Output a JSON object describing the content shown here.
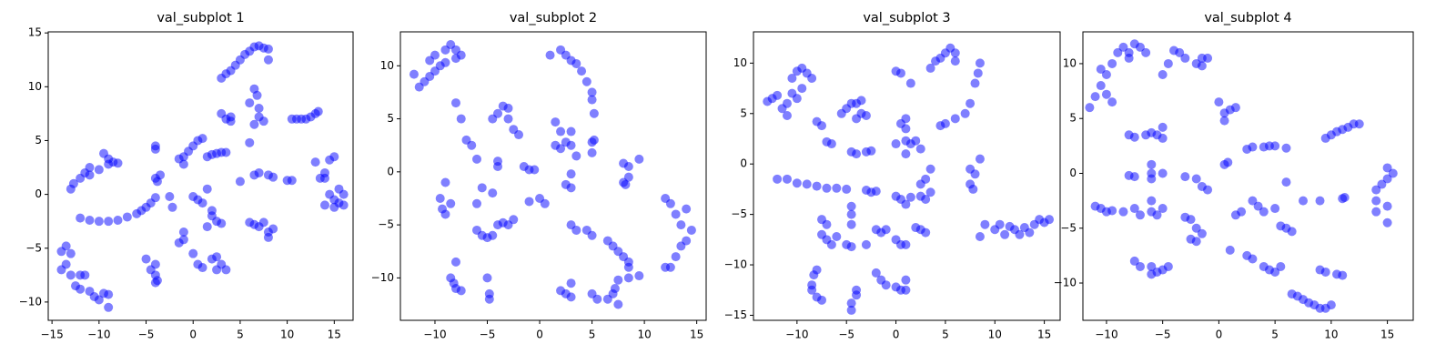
{
  "chart_data": [
    {
      "type": "scatter",
      "title": "val_subplot 1",
      "color": "blue",
      "alpha": 0.5,
      "xlim": [
        -15.4,
        17.0
      ],
      "ylim": [
        -11.7,
        15.1
      ],
      "xticks": [
        {
          "value": -15,
          "label": "−15"
        },
        {
          "value": -10,
          "label": "−10"
        },
        {
          "value": -5,
          "label": "−5"
        },
        0,
        5,
        10,
        15
      ],
      "yticks": [
        {
          "value": -10,
          "label": "−10"
        },
        {
          "value": -5,
          "label": "−5"
        },
        0,
        5,
        10,
        15
      ],
      "x": [
        3,
        3.5,
        4,
        4.5,
        5,
        5.5,
        6,
        6.5,
        7,
        7.5,
        8,
        8,
        6.5,
        6.8,
        6,
        7,
        7,
        7.5,
        6.5,
        6,
        3,
        3.5,
        4,
        4,
        10.5,
        11,
        11.5,
        12,
        12.5,
        13,
        13.3,
        0,
        0.5,
        1,
        -0.5,
        -1,
        -1.5,
        -1,
        1.5,
        2,
        2.5,
        3,
        3.5,
        -4,
        -4,
        -3.5,
        -4,
        -3.8,
        -13,
        -12.7,
        -12,
        -11.5,
        -11,
        -10,
        -9.5,
        -9,
        -9,
        -8.5,
        -8,
        -11,
        5,
        6.5,
        7,
        8,
        8.5,
        10.5,
        10,
        13,
        13.5,
        14,
        14.5,
        15,
        14,
        14.5,
        15,
        15,
        15.5,
        16,
        15.5,
        14,
        16,
        -12,
        -11,
        -10,
        -9,
        -8,
        -7,
        -6,
        -5.5,
        -5,
        -4.5,
        -4,
        -2.5,
        -2.2,
        0,
        0.5,
        1,
        1.5,
        2,
        2.5,
        3,
        1.5,
        2,
        -1,
        -1,
        -1.5,
        0,
        0.5,
        1,
        2,
        2.5,
        3,
        3.5,
        2.5,
        6,
        6.5,
        7,
        7.5,
        8,
        8,
        8.5,
        -14,
        -13.5,
        -13,
        -13.5,
        -14,
        -13,
        -12,
        -11.5,
        -12.5,
        -12,
        -11,
        -10.5,
        -10,
        -9.5,
        -9,
        -9,
        -5,
        -4.5,
        -4,
        -4,
        -4,
        -3.8
      ],
      "y": [
        10.8,
        11.2,
        11.5,
        12,
        12.5,
        13,
        13.3,
        13.7,
        13.8,
        13.6,
        13.5,
        12.5,
        9.8,
        9.2,
        8.5,
        8,
        7.2,
        6.8,
        6.5,
        4.8,
        7.5,
        7,
        6.8,
        7.2,
        7,
        7,
        7,
        7,
        7.2,
        7.5,
        7.7,
        4.5,
        5,
        5.2,
        4,
        3.5,
        3.3,
        2.8,
        3.5,
        3.7,
        3.8,
        3.9,
        3.9,
        4.5,
        4.2,
        1.8,
        1.5,
        1.2,
        0.5,
        1,
        1.5,
        2,
        2.5,
        2.3,
        3.8,
        3.3,
        2.8,
        3,
        2.9,
        1.8,
        1.2,
        1.8,
        2,
        1.8,
        1.6,
        1.3,
        1.3,
        3,
        1.5,
        2,
        3.2,
        3.5,
        1.5,
        0,
        -0.5,
        -1.2,
        0.5,
        0,
        -0.8,
        -1,
        -1,
        -2.2,
        -2.4,
        -2.5,
        -2.5,
        -2.4,
        -2.1,
        -1.8,
        -1.5,
        -1.2,
        -0.8,
        -0.3,
        -0.2,
        -1.2,
        -0.2,
        -0.5,
        -0.8,
        0.5,
        -1.5,
        -2.5,
        -2.7,
        -3,
        -2,
        -3.5,
        -4.2,
        -4.5,
        -5.5,
        -6.5,
        -6.8,
        -6,
        -7,
        -6.5,
        -7,
        -5.8,
        -2.6,
        -2.8,
        -3,
        -2.6,
        -3.5,
        -4,
        -3.2,
        -5.3,
        -4.8,
        -5.5,
        -6.5,
        -7,
        -7.5,
        -7.5,
        -7.5,
        -8.5,
        -8.8,
        -9,
        -9.5,
        -9.8,
        -9.2,
        -10.5,
        -9.3,
        -6,
        -7,
        -6.5,
        -7.5,
        -8.2,
        -8
      ]
    },
    {
      "type": "scatter",
      "title": "val_subplot 2",
      "color": "blue",
      "alpha": 0.5,
      "xlim": [
        -13.3,
        15.9
      ],
      "ylim": [
        -14.0,
        13.2
      ],
      "xticks": [
        {
          "value": -10,
          "label": "−10"
        },
        {
          "value": -5,
          "label": "−5"
        },
        0,
        5,
        10,
        15
      ],
      "yticks": [
        {
          "value": -10,
          "label": "−10"
        },
        {
          "value": -5,
          "label": "−5"
        },
        0,
        5,
        10
      ],
      "x": [
        -12,
        -11.5,
        -11,
        -10.5,
        -10,
        -10.5,
        -10,
        -9,
        -8.5,
        -8,
        -7.5,
        -8,
        -9,
        -9.5,
        1,
        2,
        2.5,
        3,
        3.5,
        4,
        4.5,
        5,
        5,
        5.2,
        -8,
        -7.5,
        -7,
        -6.5,
        -6,
        -4.5,
        -4,
        -3.5,
        -3,
        -3,
        -2.5,
        -2,
        -4,
        -4,
        -1.5,
        -1,
        -0.5,
        1.5,
        2,
        2.5,
        3,
        3,
        2,
        3.5,
        1.5,
        5,
        5.2,
        5,
        8,
        8.5,
        9.5,
        8.5,
        8,
        8.2,
        -9,
        -9.5,
        -9.3,
        -9,
        -8.5,
        -6,
        -5.5,
        -4.5,
        -6,
        -5.5,
        -5,
        -4.5,
        -4,
        -3.5,
        -3,
        -2.5,
        -1,
        0,
        0.5,
        3,
        2.5,
        3,
        3,
        3.5,
        4.5,
        5,
        6.5,
        7,
        7.5,
        8,
        8.5,
        8.5,
        9.5,
        8.5,
        7.5,
        12,
        12.5,
        13,
        13.5,
        14,
        14.5,
        14,
        13.5,
        13,
        12.5,
        12,
        -8,
        -8.5,
        -8.2,
        -8,
        -7.5,
        -5,
        -4.8,
        -4.8,
        2,
        2.5,
        3,
        3,
        5,
        5.5,
        6.5,
        7,
        7.5,
        7.2
      ],
      "y": [
        9.2,
        8,
        8.5,
        9,
        9.5,
        10.5,
        11,
        11.5,
        12,
        11.5,
        11,
        10.7,
        10.3,
        10,
        11,
        11.5,
        11,
        10.5,
        10.2,
        9.5,
        8.5,
        7.5,
        6.8,
        5.5,
        6.5,
        5,
        3,
        2.5,
        1.2,
        5,
        5.5,
        6.2,
        6,
        5,
        4,
        3.5,
        1,
        0.5,
        0.5,
        0.2,
        0.2,
        4.7,
        3.8,
        2.8,
        2.5,
        3.8,
        2.2,
        1.5,
        2.5,
        2.8,
        3,
        1.8,
        0.8,
        0.5,
        1.2,
        -0.5,
        -1,
        -1.2,
        -1,
        -2.5,
        -3.5,
        -4,
        -3,
        -3,
        -1.5,
        -2,
        -5.5,
        -6,
        -6.2,
        -6,
        -5,
        -4.8,
        -5,
        -4.5,
        -2.8,
        -2.5,
        -3,
        -0.2,
        -1.2,
        -1.5,
        -5,
        -5.5,
        -5.5,
        -6,
        -6.5,
        -7,
        -7.5,
        -8,
        -8.5,
        -9,
        -9.8,
        -10,
        -10.2,
        -2.5,
        -3,
        -4,
        -5,
        -3.5,
        -5.5,
        -6.5,
        -7,
        -8,
        -9,
        -9,
        -8.5,
        -10,
        -10.5,
        -11,
        -11.2,
        -10,
        -11.5,
        -12,
        -11.2,
        -11.5,
        -10.5,
        -11.8,
        -11.5,
        -12,
        -12,
        -11.5,
        -12.5,
        -11
      ]
    },
    {
      "type": "scatter",
      "title": "val_subplot 3",
      "color": "blue",
      "alpha": 0.5,
      "xlim": [
        -14.4,
        16.6
      ],
      "ylim": [
        -15.5,
        13.1
      ],
      "xticks": [
        {
          "value": -10,
          "label": "−10"
        },
        {
          "value": -5,
          "label": "−5"
        },
        0,
        5,
        10,
        15
      ],
      "yticks": [
        {
          "value": -15,
          "label": "−15"
        },
        {
          "value": -10,
          "label": "−10"
        },
        {
          "value": -5,
          "label": "−5"
        },
        0,
        5,
        10
      ],
      "x": [
        -13,
        -12.5,
        -12,
        -11.5,
        -11,
        -10.5,
        -10.5,
        -10,
        -9.5,
        -9,
        -8.5,
        -9.5,
        -10,
        -11,
        -8,
        -7.5,
        -7,
        -6.5,
        -5.5,
        -5,
        -4.5,
        -4,
        -3.5,
        -3.5,
        -3,
        -4,
        -4.5,
        -4,
        -3,
        -2.5,
        0,
        0.5,
        1.5,
        1,
        0.5,
        1,
        0,
        1,
        1.5,
        2,
        1,
        2.5,
        3.5,
        4,
        4.5,
        5,
        5.5,
        6,
        6,
        8.5,
        8.3,
        8,
        7.5,
        7,
        6,
        5,
        4.5,
        8.5,
        7.5,
        8,
        7.5,
        7.8,
        3.5,
        3,
        3.5,
        2.5,
        3,
        2.5,
        -12,
        -11,
        -10,
        -9,
        -8,
        -7,
        -6,
        -5,
        -3,
        -2.5,
        -2,
        0,
        0.5,
        1,
        1.5,
        9,
        10,
        10.5,
        11,
        11.5,
        12,
        12.5,
        13,
        13.5,
        14,
        14.5,
        15,
        15.5,
        8.5,
        -7.5,
        -7,
        -7.5,
        -7,
        -6.5,
        -6,
        -5,
        -4.5,
        -4.5,
        -4.5,
        -4.5,
        -3,
        -2,
        -1.5,
        -1,
        0,
        0.5,
        1,
        2,
        2.5,
        3,
        -8,
        -8.3,
        -8.5,
        -8.5,
        -8,
        -7.5,
        -4.5,
        -4.5,
        -4,
        -4,
        -2,
        -1.5,
        -1,
        0,
        0.5,
        1,
        1
      ],
      "y": [
        6.2,
        6.5,
        6.8,
        5.5,
        6,
        7,
        8.5,
        9.2,
        9.5,
        9,
        8.5,
        7.5,
        6.5,
        4.8,
        4.2,
        3.8,
        2.2,
        2,
        5,
        5.5,
        6,
        6,
        6.3,
        5,
        4.8,
        4.5,
        1.2,
        1,
        1.2,
        1.3,
        9.2,
        9,
        8,
        4.5,
        4,
        3.5,
        2,
        2.3,
        2,
        2.3,
        1,
        1.5,
        9.5,
        10.2,
        10.5,
        11,
        11.5,
        11,
        10.2,
        10,
        9,
        8,
        6,
        5,
        4.5,
        4,
        3.8,
        0.5,
        -0.5,
        -1,
        -2,
        -2.5,
        -0.5,
        -1.5,
        -2.8,
        -2,
        -3.5,
        -3.2,
        -1.5,
        -1.5,
        -1.9,
        -2,
        -2.2,
        -2.4,
        -2.4,
        -2.5,
        -2.6,
        -2.8,
        -2.7,
        -3.2,
        -3.5,
        -4,
        -3.3,
        -6,
        -6.5,
        -6,
        -7,
        -6.2,
        -6.5,
        -7,
        -6.3,
        -6.8,
        -6,
        -5.5,
        -5.8,
        -5.5,
        -7.2,
        -5.5,
        -6,
        -7,
        -7.5,
        -8,
        -7.2,
        -8,
        -8.2,
        -5,
        -4.2,
        -6,
        -8,
        -6.5,
        -6.8,
        -6.5,
        -7.5,
        -8,
        -8,
        -6.3,
        -6.5,
        -6.8,
        -10.5,
        -11,
        -12,
        -12.5,
        -13.2,
        -13.5,
        -13.8,
        -14.5,
        -13,
        -12.5,
        -10.8,
        -11.5,
        -12,
        -12.2,
        -12.5,
        -11.5,
        -12.5
      ]
    },
    {
      "type": "scatter",
      "title": "val_subplot 4",
      "color": "blue",
      "alpha": 0.5,
      "xlim": [
        -12.1,
        17.3
      ],
      "ylim": [
        -13.4,
        12.9
      ],
      "xticks": [
        {
          "value": -10,
          "label": "−10"
        },
        {
          "value": -5,
          "label": "−5"
        },
        0,
        5,
        10,
        15
      ],
      "yticks": [
        {
          "value": -10,
          "label": "−10"
        },
        {
          "value": -5,
          "label": "−5"
        },
        0,
        5,
        10
      ],
      "x": [
        -11.5,
        -11,
        -10.5,
        -10.5,
        -10,
        -9.5,
        -9,
        -8.5,
        -8,
        -7.5,
        -7,
        -6.5,
        -8,
        -9.5,
        -10,
        -5,
        -4.5,
        -4,
        -3.5,
        -3,
        -2,
        -1.5,
        -1,
        -1.5,
        0,
        0.5,
        1,
        1.5,
        0.5,
        -8,
        -7.5,
        -6.5,
        -6,
        -5.5,
        -5,
        -5,
        -8,
        -7.5,
        -6,
        -6,
        -5,
        -6,
        -3,
        -2,
        -1.5,
        -1,
        0.5,
        0.8,
        2.5,
        3,
        4,
        4.5,
        5,
        6,
        10,
        10.5,
        11,
        11.5,
        12,
        12.5,
        9.5,
        15,
        15.5,
        15,
        14.5,
        14,
        14,
        15,
        14,
        15,
        -11,
        -10.5,
        -10,
        -9.5,
        -8.5,
        -7.5,
        -7,
        -6,
        -5.5,
        -5,
        -6,
        -3,
        -2.5,
        -2,
        -2.5,
        -2,
        -1.5,
        1.5,
        2,
        3,
        3.5,
        4,
        5,
        5.5,
        6,
        6.5,
        6,
        7.5,
        9,
        11,
        11.2,
        -7.5,
        -7,
        -6,
        -5.5,
        -5,
        -4.5,
        -6,
        1,
        2.5,
        3,
        4,
        4.5,
        5,
        5.5,
        9,
        9.5,
        10.5,
        11,
        6.5,
        7,
        7.5,
        8,
        8.5,
        9,
        9.5,
        10
      ],
      "y": [
        6,
        7,
        8,
        9.5,
        9,
        10,
        11,
        11.5,
        11,
        11.8,
        11.5,
        11,
        10.5,
        6.5,
        7.2,
        9,
        10,
        11.2,
        11,
        10.5,
        10,
        10.5,
        10.5,
        9.8,
        6.5,
        5.5,
        5.8,
        6,
        4.8,
        3.5,
        3.3,
        3.5,
        3.7,
        3.5,
        3.2,
        4.2,
        -0.2,
        -0.3,
        0.8,
        0,
        0,
        -0.5,
        -0.3,
        -0.5,
        -1.2,
        -1.5,
        0.8,
        1,
        2.2,
        2.4,
        2.4,
        2.5,
        2.5,
        2.3,
        3.5,
        3.8,
        4,
        4.2,
        4.5,
        4.5,
        3.2,
        0.5,
        0,
        -0.5,
        -1,
        -1.5,
        -2.5,
        -3,
        -3.5,
        -4.5,
        -3,
        -3.2,
        -3.5,
        -3.4,
        -3.5,
        -3.2,
        -3.8,
        -3.5,
        -3.8,
        -3.2,
        -2.5,
        -4,
        -4.2,
        -5,
        -6,
        -6.2,
        -5.5,
        -3.8,
        -3.5,
        -2.5,
        -3,
        -3.5,
        -3.2,
        -4.8,
        -5,
        -5.3,
        -0.8,
        -2.5,
        -2.5,
        -2.3,
        -2.2,
        -8,
        -8.5,
        -8.5,
        -9,
        -8.8,
        -8.5,
        -9.2,
        -7,
        -7.5,
        -7.8,
        -8.5,
        -8.8,
        -9,
        -8.5,
        -8.8,
        -9,
        -9.2,
        -9.3,
        -11,
        -11.2,
        -11.5,
        -11.8,
        -12,
        -12.3,
        -12.3,
        -12
      ]
    }
  ]
}
